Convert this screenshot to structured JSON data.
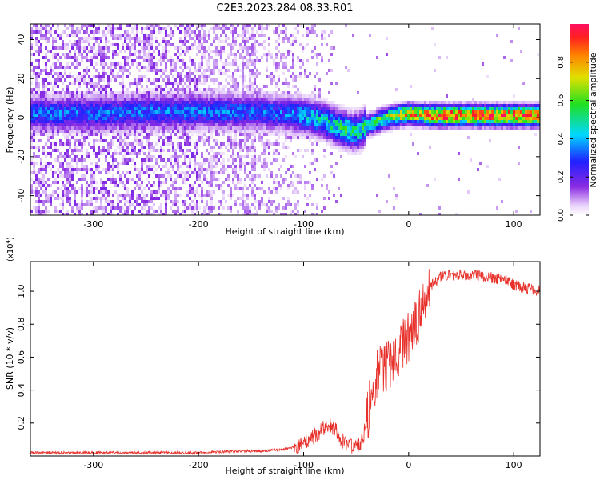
{
  "title": "C2E3.2023.284.08.33.R01",
  "colors": {
    "snr_line": "#e8302a",
    "axis": "#000000"
  },
  "chart_data": [
    {
      "type": "heatmap",
      "name": "spectrogram",
      "xlabel": "Height of straight line (km)",
      "ylabel": "Frequency (Hz)",
      "xlim": [
        -360,
        125
      ],
      "ylim": [
        -50,
        48
      ],
      "xticks": [
        -300,
        -200,
        -100,
        0,
        100
      ],
      "xtick_labels": [
        "-300",
        "-200",
        "-100",
        "0",
        "100"
      ],
      "yticks": [
        -40,
        -20,
        0,
        20,
        40
      ],
      "ytick_labels": [
        "-40",
        "-20",
        "0",
        "20",
        "40"
      ],
      "ridge_height_km": [
        -360,
        -300,
        -250,
        -200,
        -150,
        -120,
        -100,
        -80,
        -65,
        -55,
        -48,
        -40,
        -30,
        -20,
        -10,
        0,
        20,
        60,
        100,
        125
      ],
      "ridge_frequency_hz": [
        2,
        2,
        3,
        3,
        3,
        2,
        1,
        -2,
        -5,
        -7,
        -7,
        -4,
        -2,
        0,
        1,
        2,
        1,
        1,
        1,
        1
      ],
      "colorbar": {
        "label": "Normalized spectral amplitude",
        "range": [
          0,
          1
        ],
        "ticks": [
          0.0,
          0.2,
          0.4,
          0.6,
          0.8
        ],
        "tick_labels": [
          "0.0",
          "0.2",
          "0.4",
          "0.6",
          "0.8"
        ]
      }
    },
    {
      "type": "line",
      "name": "snr",
      "xlabel": "Height of straight line (km)",
      "ylabel": "SNR (10 * v/v)",
      "y_multiplier": "(x10",
      "y_multiplier_exp": "4",
      "y_multiplier_close": ")",
      "xlim": [
        -360,
        125
      ],
      "ylim": [
        0,
        1.18
      ],
      "xticks": [
        -300,
        -200,
        -100,
        0,
        100
      ],
      "xtick_labels": [
        "-300",
        "-200",
        "-100",
        "0",
        "100"
      ],
      "yticks": [
        0.2,
        0.4,
        0.6,
        0.8,
        1.0
      ],
      "ytick_labels": [
        "0.2",
        "0.4",
        "0.6",
        "0.8",
        "1.0"
      ],
      "x": [
        -360,
        -300,
        -250,
        -200,
        -160,
        -140,
        -120,
        -110,
        -100,
        -90,
        -85,
        -80,
        -75,
        -70,
        -65,
        -60,
        -55,
        -50,
        -45,
        -40,
        -35,
        -30,
        -25,
        -20,
        -15,
        -10,
        -5,
        0,
        5,
        10,
        15,
        20,
        25,
        30,
        40,
        50,
        60,
        70,
        80,
        90,
        100,
        110,
        125
      ],
      "y": [
        0.02,
        0.02,
        0.02,
        0.02,
        0.03,
        0.03,
        0.04,
        0.05,
        0.07,
        0.12,
        0.14,
        0.18,
        0.2,
        0.16,
        0.1,
        0.08,
        0.06,
        0.05,
        0.08,
        0.2,
        0.4,
        0.5,
        0.52,
        0.56,
        0.58,
        0.64,
        0.68,
        0.72,
        0.78,
        0.85,
        0.95,
        1.02,
        1.06,
        1.08,
        1.1,
        1.1,
        1.1,
        1.09,
        1.08,
        1.07,
        1.04,
        1.02,
        1.0
      ]
    }
  ]
}
